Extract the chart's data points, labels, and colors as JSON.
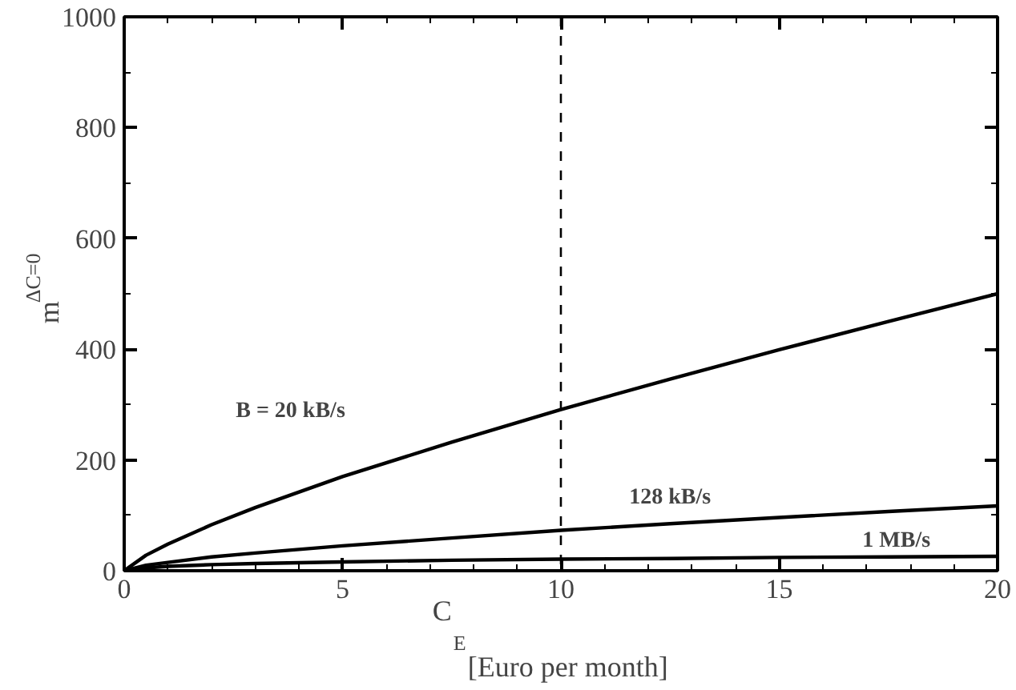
{
  "chart_data": {
    "type": "line",
    "xlabel": "C$_{E}$ [Euro per month]",
    "ylabel": "m$_{ΔC=0}$",
    "x": [
      0,
      0.5,
      1,
      2,
      3,
      5,
      7.5,
      10,
      12.5,
      15,
      17.5,
      20
    ],
    "series": [
      {
        "name": "B = 20 kB/s",
        "color": "#000000",
        "values": [
          0,
          28,
          48,
          83,
          114,
          170,
          232,
          291,
          346,
          399,
          450,
          500
        ]
      },
      {
        "name": "128 kB/s",
        "color": "#000000",
        "values": [
          0,
          10,
          15,
          25,
          32,
          45,
          59,
          73,
          85,
          96,
          107,
          117
        ]
      },
      {
        "name": "1 MB/s",
        "color": "#000000",
        "values": [
          0,
          5,
          8,
          11,
          13,
          16,
          19,
          21,
          22,
          24,
          25,
          26
        ]
      }
    ],
    "ref_lines": [
      {
        "axis": "x",
        "value": 10,
        "line_style": "dashed",
        "color": "#000000"
      }
    ],
    "xlim": [
      0,
      20
    ],
    "xticks": [
      0,
      5,
      10,
      15,
      20
    ],
    "ylim": [
      0,
      1000
    ],
    "yticks": [
      0,
      200,
      400,
      600,
      800,
      1000
    ],
    "grid": false,
    "marker": "none",
    "line_style": "solid"
  }
}
